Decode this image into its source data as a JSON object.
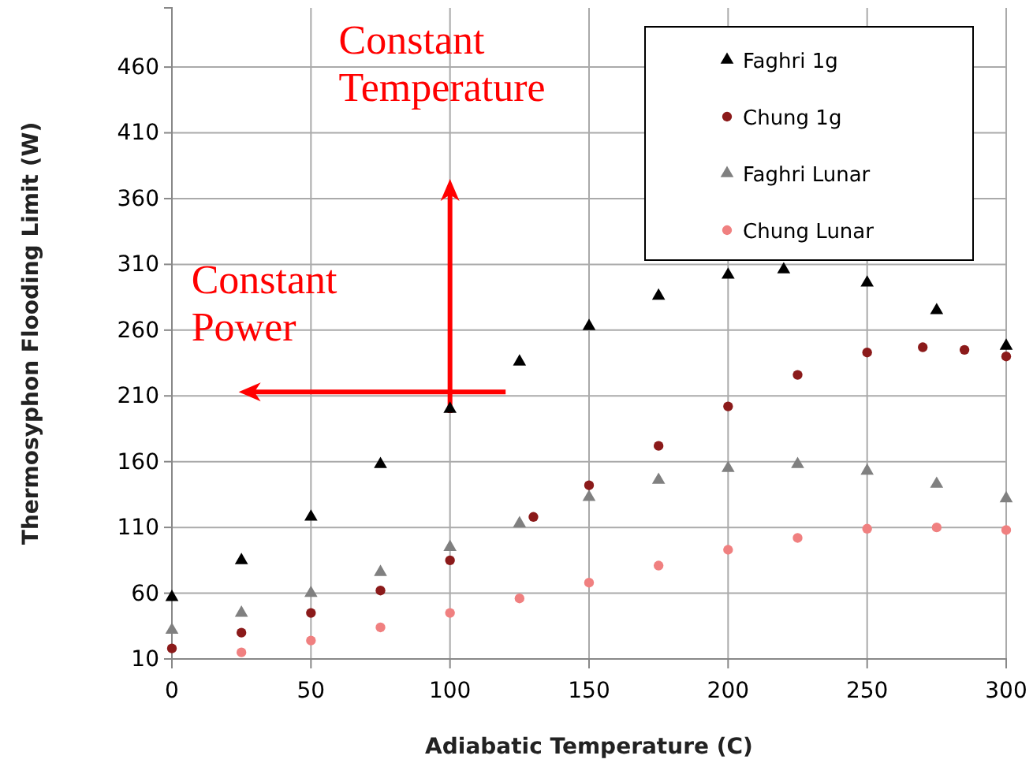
{
  "chart_data": {
    "type": "scatter",
    "xlabel": "Adiabatic Temperature (C)",
    "ylabel": "Thermosyphon Flooding Limit (W)",
    "xlim": [
      0,
      300
    ],
    "xticks": [
      0,
      50,
      100,
      150,
      200,
      250,
      300
    ],
    "ylim": [
      10,
      505
    ],
    "yticks": [
      10,
      60,
      110,
      160,
      210,
      260,
      310,
      360,
      410,
      460
    ],
    "grid": true,
    "legend": "top right",
    "annotations": [
      "Constant Temperature",
      "Constant Power"
    ],
    "series": [
      {
        "name": "Faghri 1g",
        "color": "#000000",
        "marker": "triangle",
        "x": [
          0,
          25,
          50,
          75,
          100,
          125,
          150,
          175,
          200,
          220,
          250,
          275,
          300
        ],
        "values": [
          57,
          85,
          118,
          158,
          200,
          236,
          263,
          286,
          302,
          306,
          296,
          275,
          248
        ]
      },
      {
        "name": "Chung 1g",
        "color": "#8b1a1a",
        "marker": "circle",
        "x": [
          0,
          25,
          50,
          75,
          100,
          130,
          150,
          175,
          200,
          225,
          250,
          270,
          285,
          300
        ],
        "values": [
          18,
          30,
          45,
          62,
          85,
          118,
          142,
          172,
          202,
          226,
          243,
          247,
          245,
          240
        ]
      },
      {
        "name": "Faghri Lunar",
        "color": "#808080",
        "marker": "triangle",
        "x": [
          0,
          25,
          50,
          75,
          100,
          125,
          150,
          175,
          200,
          225,
          250,
          275,
          300
        ],
        "values": [
          32,
          45,
          60,
          76,
          95,
          113,
          133,
          146,
          155,
          158,
          153,
          143,
          132
        ]
      },
      {
        "name": "Chung Lunar",
        "color": "#f08080",
        "marker": "circle",
        "x": [
          25,
          50,
          75,
          100,
          125,
          150,
          175,
          200,
          225,
          250,
          275,
          300
        ],
        "values": [
          15,
          24,
          34,
          45,
          56,
          68,
          81,
          93,
          102,
          109,
          110,
          108
        ]
      }
    ]
  }
}
